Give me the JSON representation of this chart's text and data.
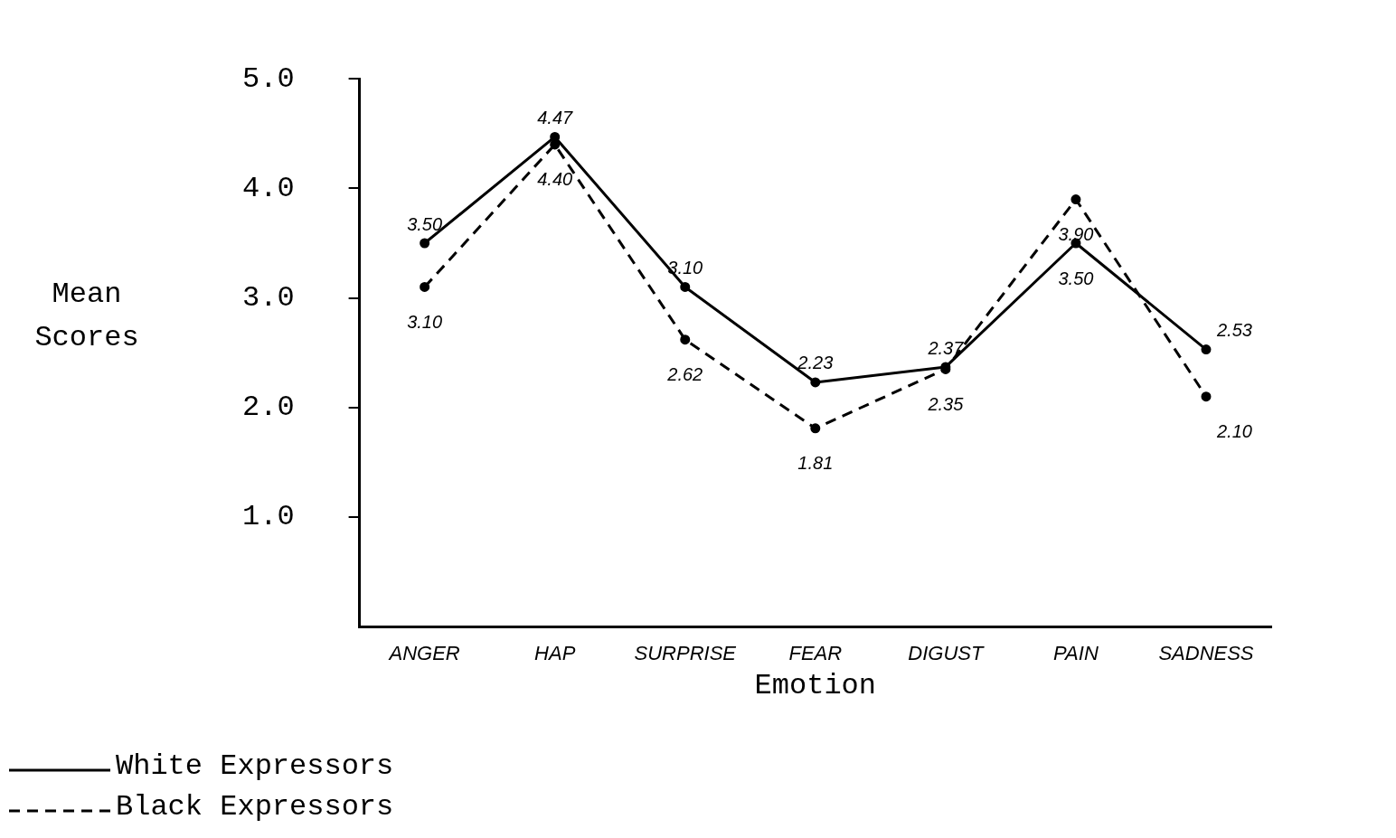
{
  "chart_data": {
    "type": "line",
    "xlabel": "Emotion",
    "ylabel": "Mean Scores",
    "categories": [
      "ANGER",
      "HAP",
      "SURPRISE",
      "FEAR",
      "DIGUST",
      "PAIN",
      "SADNESS"
    ],
    "series": [
      {
        "name": "White Expressors",
        "color": "#000000",
        "line_style": "solid",
        "values": [
          3.5,
          4.47,
          3.1,
          2.23,
          2.37,
          3.5,
          2.53
        ],
        "value_labels": [
          "3.50",
          "4.47",
          "3.10",
          "2.23",
          "2.37",
          "3.50",
          "2.53"
        ]
      },
      {
        "name": "Black Expressors",
        "color": "#000000",
        "line_style": "dashed",
        "values": [
          3.1,
          4.4,
          2.62,
          1.81,
          2.35,
          3.9,
          2.1
        ],
        "value_labels": [
          "3.10",
          "4.40",
          "2.62",
          "1.81",
          "2.35",
          "3.90",
          "2.10"
        ]
      }
    ],
    "ylim": [
      0,
      5
    ],
    "yticks": [
      {
        "value": 1,
        "label": "1.0"
      },
      {
        "value": 2,
        "label": "2.0"
      },
      {
        "value": 3,
        "label": "3.0"
      },
      {
        "value": 4,
        "label": "4.0"
      },
      {
        "value": 5,
        "label": "5.0"
      }
    ],
    "grid": false,
    "legend": "bottom left",
    "marker": "circle"
  }
}
